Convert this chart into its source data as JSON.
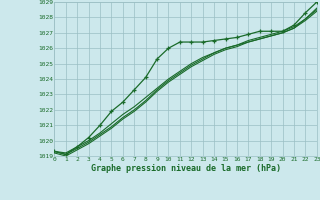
{
  "xlabel": "Graphe pression niveau de la mer (hPa)",
  "hours": [
    0,
    1,
    2,
    3,
    4,
    5,
    6,
    7,
    8,
    9,
    10,
    11,
    12,
    13,
    14,
    15,
    16,
    17,
    18,
    19,
    20,
    21,
    22,
    23
  ],
  "series_markers": [
    1019.3,
    1019.1,
    1019.6,
    1020.2,
    1021.0,
    1021.9,
    1022.5,
    1023.3,
    1024.1,
    1025.3,
    1026.0,
    1026.4,
    1026.4,
    1026.4,
    1026.5,
    1026.6,
    1026.7,
    1026.9,
    1027.1,
    1027.1,
    1027.1,
    1027.5,
    1028.3,
    1029.0
  ],
  "series_line1": [
    1019.3,
    1019.2,
    1019.6,
    1020.0,
    1020.5,
    1021.1,
    1021.7,
    1022.2,
    1022.8,
    1023.4,
    1024.0,
    1024.5,
    1025.0,
    1025.4,
    1025.7,
    1026.0,
    1026.2,
    1026.4,
    1026.6,
    1026.8,
    1027.0,
    1027.3,
    1027.9,
    1028.6
  ],
  "series_line2": [
    1019.3,
    1019.1,
    1019.5,
    1019.9,
    1020.4,
    1020.9,
    1021.5,
    1022.0,
    1022.6,
    1023.3,
    1023.9,
    1024.4,
    1024.9,
    1025.3,
    1025.7,
    1026.0,
    1026.2,
    1026.5,
    1026.7,
    1026.9,
    1027.1,
    1027.4,
    1027.9,
    1028.5
  ],
  "series_line3": [
    1019.2,
    1019.0,
    1019.4,
    1019.8,
    1020.3,
    1020.8,
    1021.4,
    1021.9,
    1022.5,
    1023.2,
    1023.8,
    1024.3,
    1024.8,
    1025.2,
    1025.6,
    1025.9,
    1026.1,
    1026.4,
    1026.6,
    1026.8,
    1027.0,
    1027.3,
    1027.8,
    1028.4
  ],
  "bg_color": "#cce8ec",
  "grid_color": "#9bbfc4",
  "line_color": "#1a6b2a",
  "ylim_min": 1019,
  "ylim_max": 1029,
  "xtick_labels": [
    "0",
    "1",
    "2",
    "3",
    "4",
    "5",
    "6",
    "7",
    "8",
    "9",
    "10",
    "11",
    "12",
    "13",
    "14",
    "15",
    "16",
    "17",
    "18",
    "19",
    "20",
    "21",
    "22",
    "23"
  ]
}
